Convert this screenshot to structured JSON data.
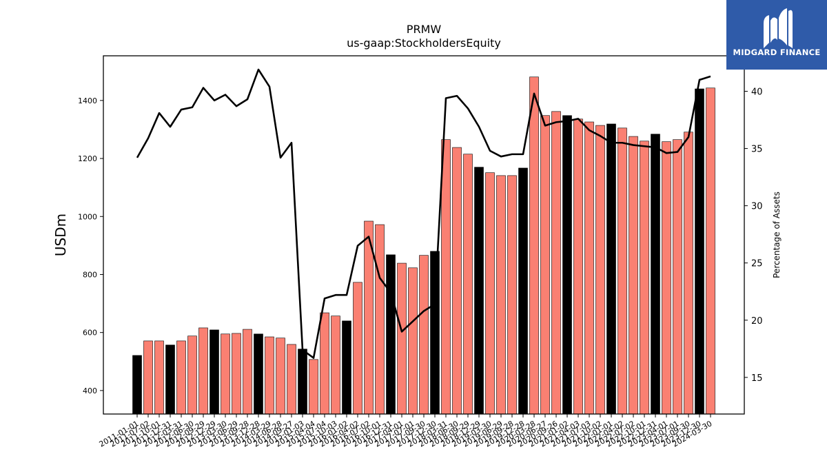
{
  "chart_data": {
    "type": "bar",
    "title": "PRMW",
    "subtitle": "us-gaap:StockholdersEquity",
    "ylabel": "USDm",
    "y2label": "Percentage of Assets",
    "ylim": [
      319,
      1554
    ],
    "y2lim": [
      11.8,
      43.1
    ],
    "yticks": [
      400,
      600,
      800,
      1000,
      1200,
      1400
    ],
    "y2ticks": [
      15,
      20,
      25,
      30,
      35,
      40
    ],
    "grid": false,
    "categories": [
      "2011-01-01",
      "2011-07-02",
      "2011-10-01",
      "2011-12-31",
      "2012-03-31",
      "2012-06-30",
      "2012-09-29",
      "2012-12-29",
      "2013-03-30",
      "2013-06-29",
      "2013-09-28",
      "2013-12-28",
      "2014-03-29",
      "2014-06-28",
      "2014-09-27",
      "2015-01-03",
      "2015-04-04",
      "2015-07-04",
      "2015-10-03",
      "2016-01-02",
      "2016-04-02",
      "2016-07-02",
      "2016-10-01",
      "2016-12-31",
      "2017-04-01",
      "2017-07-01",
      "2017-09-30",
      "2017-12-30",
      "2018-03-31",
      "2018-06-30",
      "2018-09-29",
      "2018-12-29",
      "2019-03-30",
      "2019-06-29",
      "2019-09-28",
      "2019-12-28",
      "2020-03-28",
      "2020-06-27",
      "2020-09-26",
      "2021-01-02",
      "2021-04-03",
      "2021-07-03",
      "2021-10-02",
      "2022-01-01",
      "2022-04-02",
      "2022-07-02",
      "2022-10-01",
      "2022-12-31",
      "2023-04-01",
      "2023-07-01",
      "2023-09-30",
      "2023-12-30",
      "2024-03-30"
    ],
    "series": [
      {
        "type": "bar",
        "axis": "left",
        "values": [
          521,
          571,
          571,
          557,
          571,
          588,
          616,
          609,
          595,
          597,
          611,
          595,
          585,
          581,
          559,
          543,
          507,
          668,
          657,
          640,
          773,
          984,
          972,
          868,
          839,
          823,
          866,
          880,
          1265,
          1238,
          1215,
          1170,
          1151,
          1141,
          1141,
          1167,
          1481,
          1348,
          1362,
          1348,
          1336,
          1326,
          1314,
          1319,
          1305,
          1276,
          1260,
          1284,
          1258,
          1265,
          1291,
          1440,
          1443
        ],
        "highlight": [
          true,
          false,
          false,
          true,
          false,
          false,
          false,
          true,
          false,
          false,
          false,
          true,
          false,
          false,
          false,
          true,
          false,
          false,
          false,
          true,
          false,
          false,
          false,
          true,
          false,
          false,
          false,
          true,
          false,
          false,
          false,
          true,
          false,
          false,
          false,
          true,
          false,
          false,
          false,
          true,
          false,
          false,
          false,
          true,
          false,
          false,
          false,
          true,
          false,
          false,
          false,
          true,
          false
        ],
        "color": "#fa8072",
        "highlight_color": "#000000"
      },
      {
        "type": "line",
        "axis": "right",
        "values": [
          34.2,
          35.9,
          38.1,
          36.9,
          38.4,
          38.6,
          40.3,
          39.2,
          39.7,
          38.7,
          39.3,
          41.9,
          40.4,
          34.2,
          35.5,
          17.4,
          16.7,
          21.9,
          22.2,
          22.2,
          26.5,
          27.3,
          23.7,
          22.4,
          19.0,
          19.9,
          20.8,
          21.4,
          39.4,
          39.6,
          38.5,
          36.9,
          34.8,
          34.3,
          34.5,
          34.5,
          39.8,
          37.0,
          37.3,
          37.4,
          37.6,
          36.6,
          36.1,
          35.5,
          35.5,
          35.3,
          35.2,
          35.1,
          34.6,
          34.7,
          36.0,
          41.0,
          41.3
        ],
        "color": "#000000"
      }
    ]
  },
  "logo": {
    "text": "MIDGARD FINANCE",
    "background": "#2f5ba9",
    "icon": "midgard-logo-icon"
  }
}
